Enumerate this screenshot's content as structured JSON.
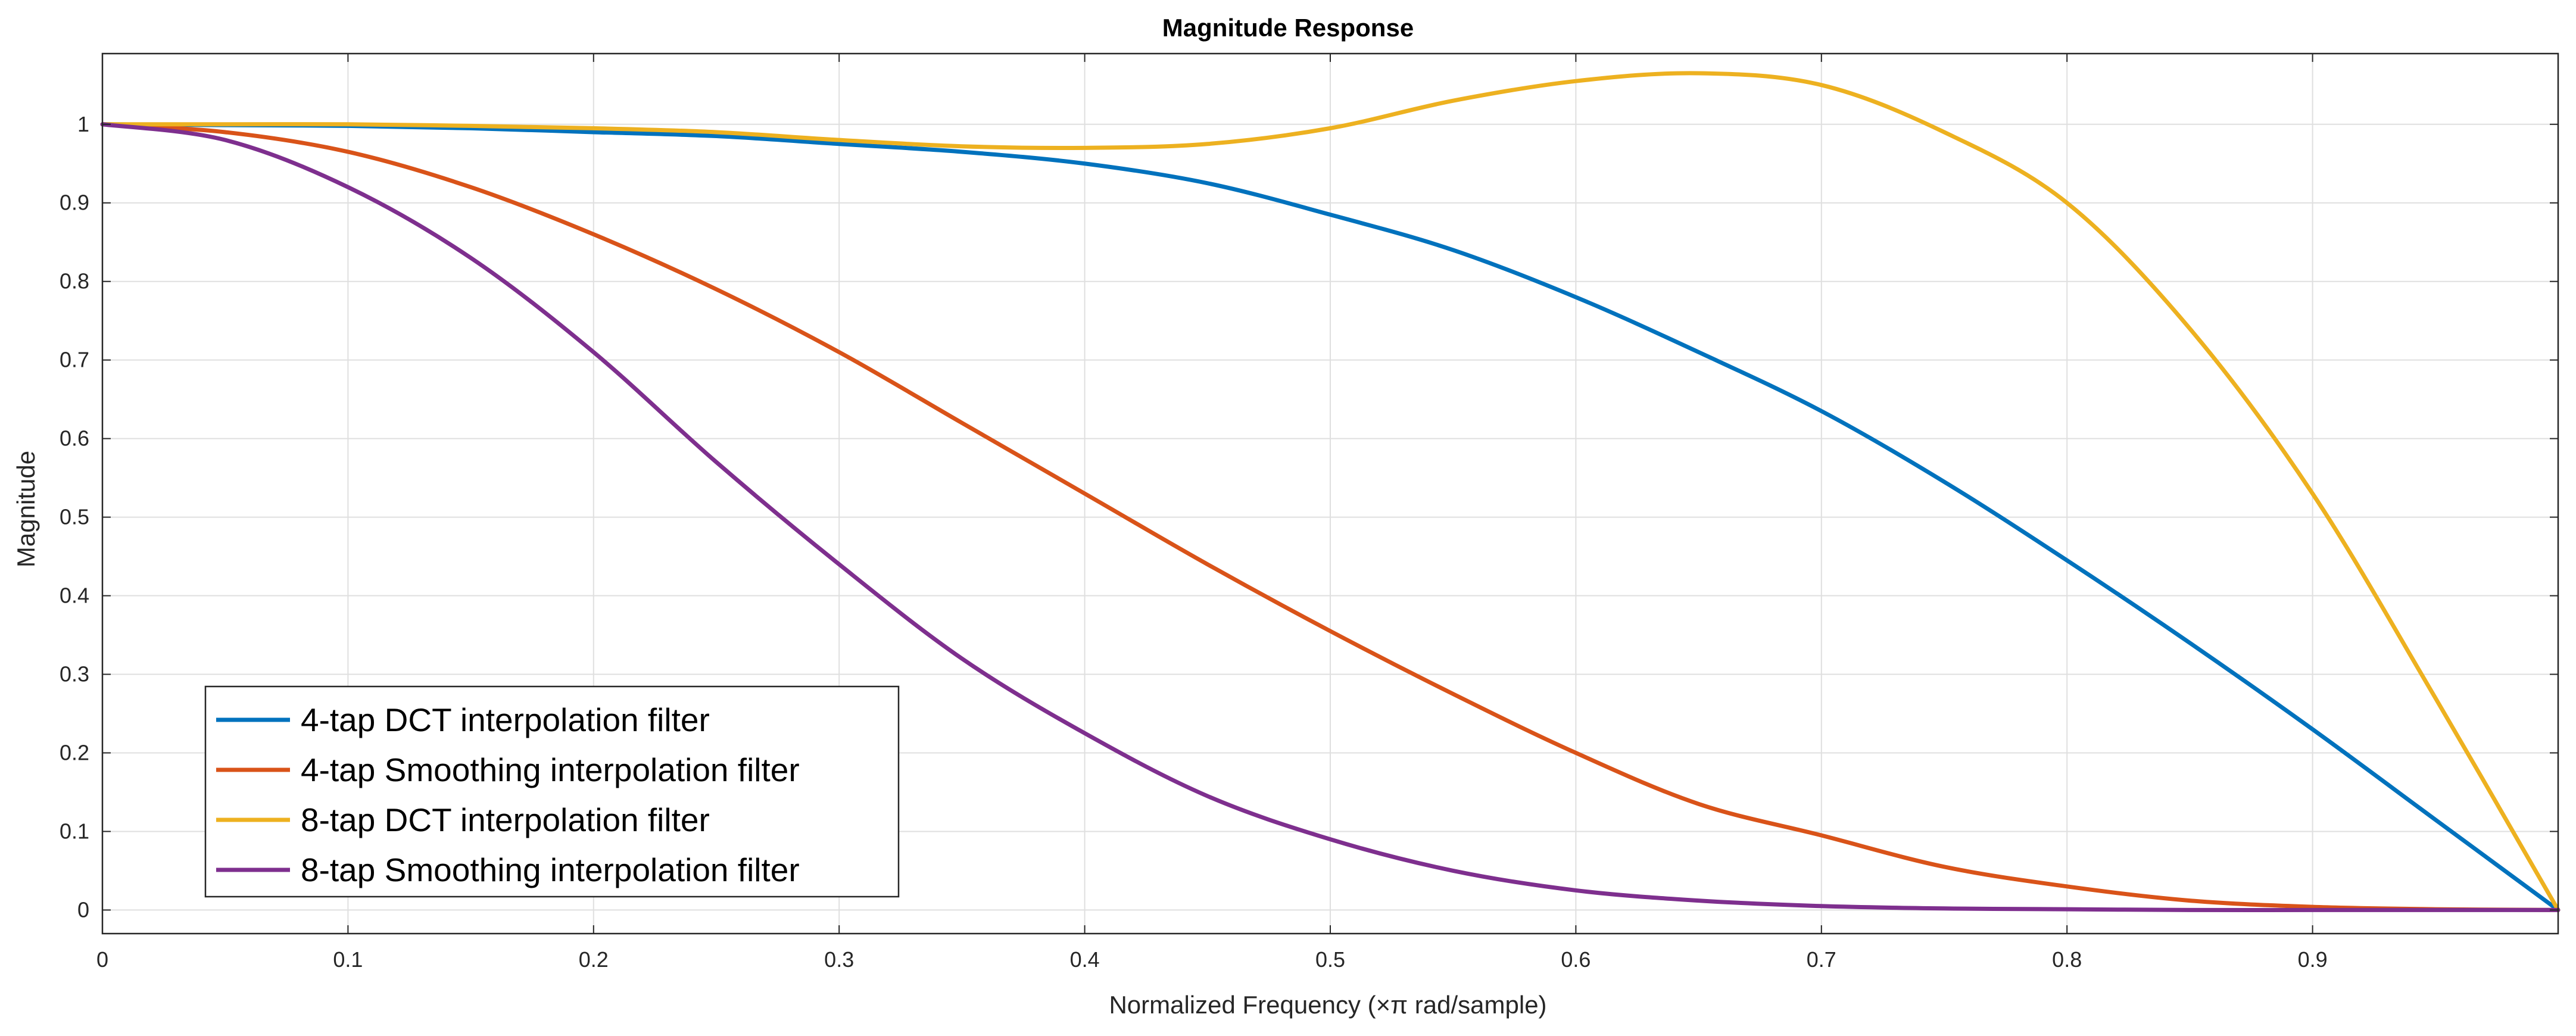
{
  "chart_data": {
    "type": "line",
    "title": "Magnitude Response",
    "xlabel": "Normalized Frequency (×π rad/sample)",
    "ylabel": "Magnitude",
    "xlim": [
      0,
      1
    ],
    "ylim": [
      -0.03,
      1.09
    ],
    "grid": true,
    "legend_position": "bottom-left",
    "xticks": [
      0,
      0.1,
      0.2,
      0.3,
      0.4,
      0.5,
      0.6,
      0.7,
      0.8,
      0.9
    ],
    "xtick_labels": [
      "0",
      "0.1",
      "0.2",
      "0.3",
      "0.4",
      "0.5",
      "0.6",
      "0.7",
      "0.8",
      "0.9"
    ],
    "yticks": [
      0,
      0.1,
      0.2,
      0.3,
      0.4,
      0.5,
      0.6,
      0.7,
      0.8,
      0.9,
      1
    ],
    "ytick_labels": [
      "0",
      "0.1",
      "0.2",
      "0.3",
      "0.4",
      "0.5",
      "0.6",
      "0.7",
      "0.8",
      "0.9",
      "1"
    ],
    "x": [
      0,
      0.05,
      0.1,
      0.15,
      0.2,
      0.25,
      0.3,
      0.35,
      0.4,
      0.45,
      0.5,
      0.55,
      0.6,
      0.65,
      0.7,
      0.75,
      0.8,
      0.85,
      0.9,
      0.95,
      1.0
    ],
    "series": [
      {
        "name": "4-tap DCT interpolation filter",
        "color": "#0072BD",
        "values": [
          1.0,
          0.999,
          0.998,
          0.995,
          0.99,
          0.985,
          0.975,
          0.965,
          0.95,
          0.925,
          0.885,
          0.84,
          0.78,
          0.71,
          0.635,
          0.545,
          0.445,
          0.34,
          0.23,
          0.115,
          0.0
        ]
      },
      {
        "name": "4-tap Smoothing interpolation filter",
        "color": "#D95319",
        "values": [
          1.0,
          0.99,
          0.965,
          0.92,
          0.86,
          0.79,
          0.71,
          0.62,
          0.53,
          0.44,
          0.355,
          0.275,
          0.2,
          0.135,
          0.095,
          0.055,
          0.03,
          0.012,
          0.004,
          0.001,
          0.0
        ]
      },
      {
        "name": "8-tap DCT interpolation filter",
        "color": "#EDB120",
        "values": [
          1.0,
          1.0,
          1.0,
          0.998,
          0.995,
          0.99,
          0.98,
          0.972,
          0.97,
          0.975,
          0.995,
          1.03,
          1.055,
          1.065,
          1.05,
          0.99,
          0.9,
          0.74,
          0.53,
          0.27,
          0.0
        ]
      },
      {
        "name": "8-tap Smoothing interpolation filter",
        "color": "#7E2F8E",
        "values": [
          1.0,
          0.98,
          0.92,
          0.83,
          0.71,
          0.57,
          0.44,
          0.32,
          0.225,
          0.145,
          0.09,
          0.05,
          0.025,
          0.012,
          0.005,
          0.002,
          0.001,
          0.0,
          0.0,
          0.0,
          0.0
        ]
      }
    ]
  }
}
